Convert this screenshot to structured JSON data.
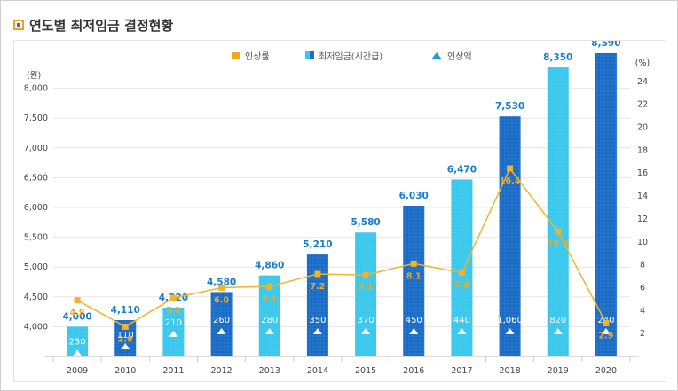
{
  "page": {
    "title": "연도별 최저임금 결정현황"
  },
  "legend": [
    {
      "label": "인상률",
      "color": "#f0a820",
      "marker": "square"
    },
    {
      "label": "최저임금(시간급)",
      "color": "#1e6fc8",
      "marker": "square-split"
    },
    {
      "label": "인상액",
      "color": "#1a9ed8",
      "marker": "triangle"
    }
  ],
  "chart_data": {
    "type": "bar",
    "categories": [
      "2009",
      "2010",
      "2011",
      "2012",
      "2013",
      "2014",
      "2015",
      "2016",
      "2017",
      "2018",
      "2019",
      "2020"
    ],
    "series": [
      {
        "name": "최저임금(시간급)",
        "values": [
          4000,
          4110,
          4320,
          4580,
          4860,
          5210,
          5580,
          6030,
          6470,
          7530,
          8350,
          8590
        ],
        "labels": [
          "4,000",
          "4,110",
          "4,320",
          "4,580",
          "4,860",
          "5,210",
          "5,580",
          "6,030",
          "6,470",
          "7,530",
          "8,350",
          "8,590"
        ],
        "colors": [
          "#3cc8ec",
          "#1e6fc8",
          "#3cc8ec",
          "#1e6fc8",
          "#3cc8ec",
          "#1e6fc8",
          "#3cc8ec",
          "#1e6fc8",
          "#3cc8ec",
          "#1e6fc8",
          "#3cc8ec",
          "#1e6fc8"
        ]
      },
      {
        "name": "인상액",
        "values": [
          230,
          110,
          210,
          260,
          280,
          350,
          370,
          450,
          440,
          1060,
          820,
          240
        ],
        "labels": [
          "230",
          "110",
          "210",
          "260",
          "280",
          "350",
          "370",
          "450",
          "440",
          "1,060",
          "820",
          "240"
        ]
      },
      {
        "name": "인상률",
        "values": [
          4.9,
          2.6,
          5.1,
          6.0,
          6.1,
          7.2,
          7.1,
          8.1,
          7.3,
          16.4,
          10.9,
          2.9
        ],
        "labels": [
          "4.9",
          "2.6",
          "5.1",
          "6.0",
          "6.1",
          "7.2",
          "7.1",
          "8.1",
          "7.3",
          "16.4",
          "10.9",
          "2.9"
        ]
      }
    ],
    "y_left": {
      "unit": "(원)",
      "ticks": [
        "8,000",
        "7,500",
        "7,000",
        "6,500",
        "6,000",
        "5,500",
        "5,000",
        "4,500",
        "4,000"
      ],
      "tick_values": [
        8000,
        7500,
        7000,
        6500,
        6000,
        5500,
        5000,
        4500,
        4000
      ],
      "range": [
        3500,
        8500
      ]
    },
    "y_right": {
      "unit": "(%)",
      "ticks": [
        "24",
        "22",
        "20",
        "18",
        "16",
        "14",
        "12",
        "10",
        "8",
        "6",
        "4",
        "2"
      ],
      "tick_values": [
        24,
        22,
        20,
        18,
        16,
        14,
        12,
        10,
        8,
        6,
        4,
        2
      ],
      "range": [
        0,
        26
      ]
    },
    "grid": true,
    "legend_position": "top-center",
    "colors": {
      "line": "#f0b32a",
      "rate_label": "#f0a820",
      "bar_label": "#1a7cd0",
      "grid": "#e6e6e6",
      "axis_text": "#444444"
    }
  }
}
